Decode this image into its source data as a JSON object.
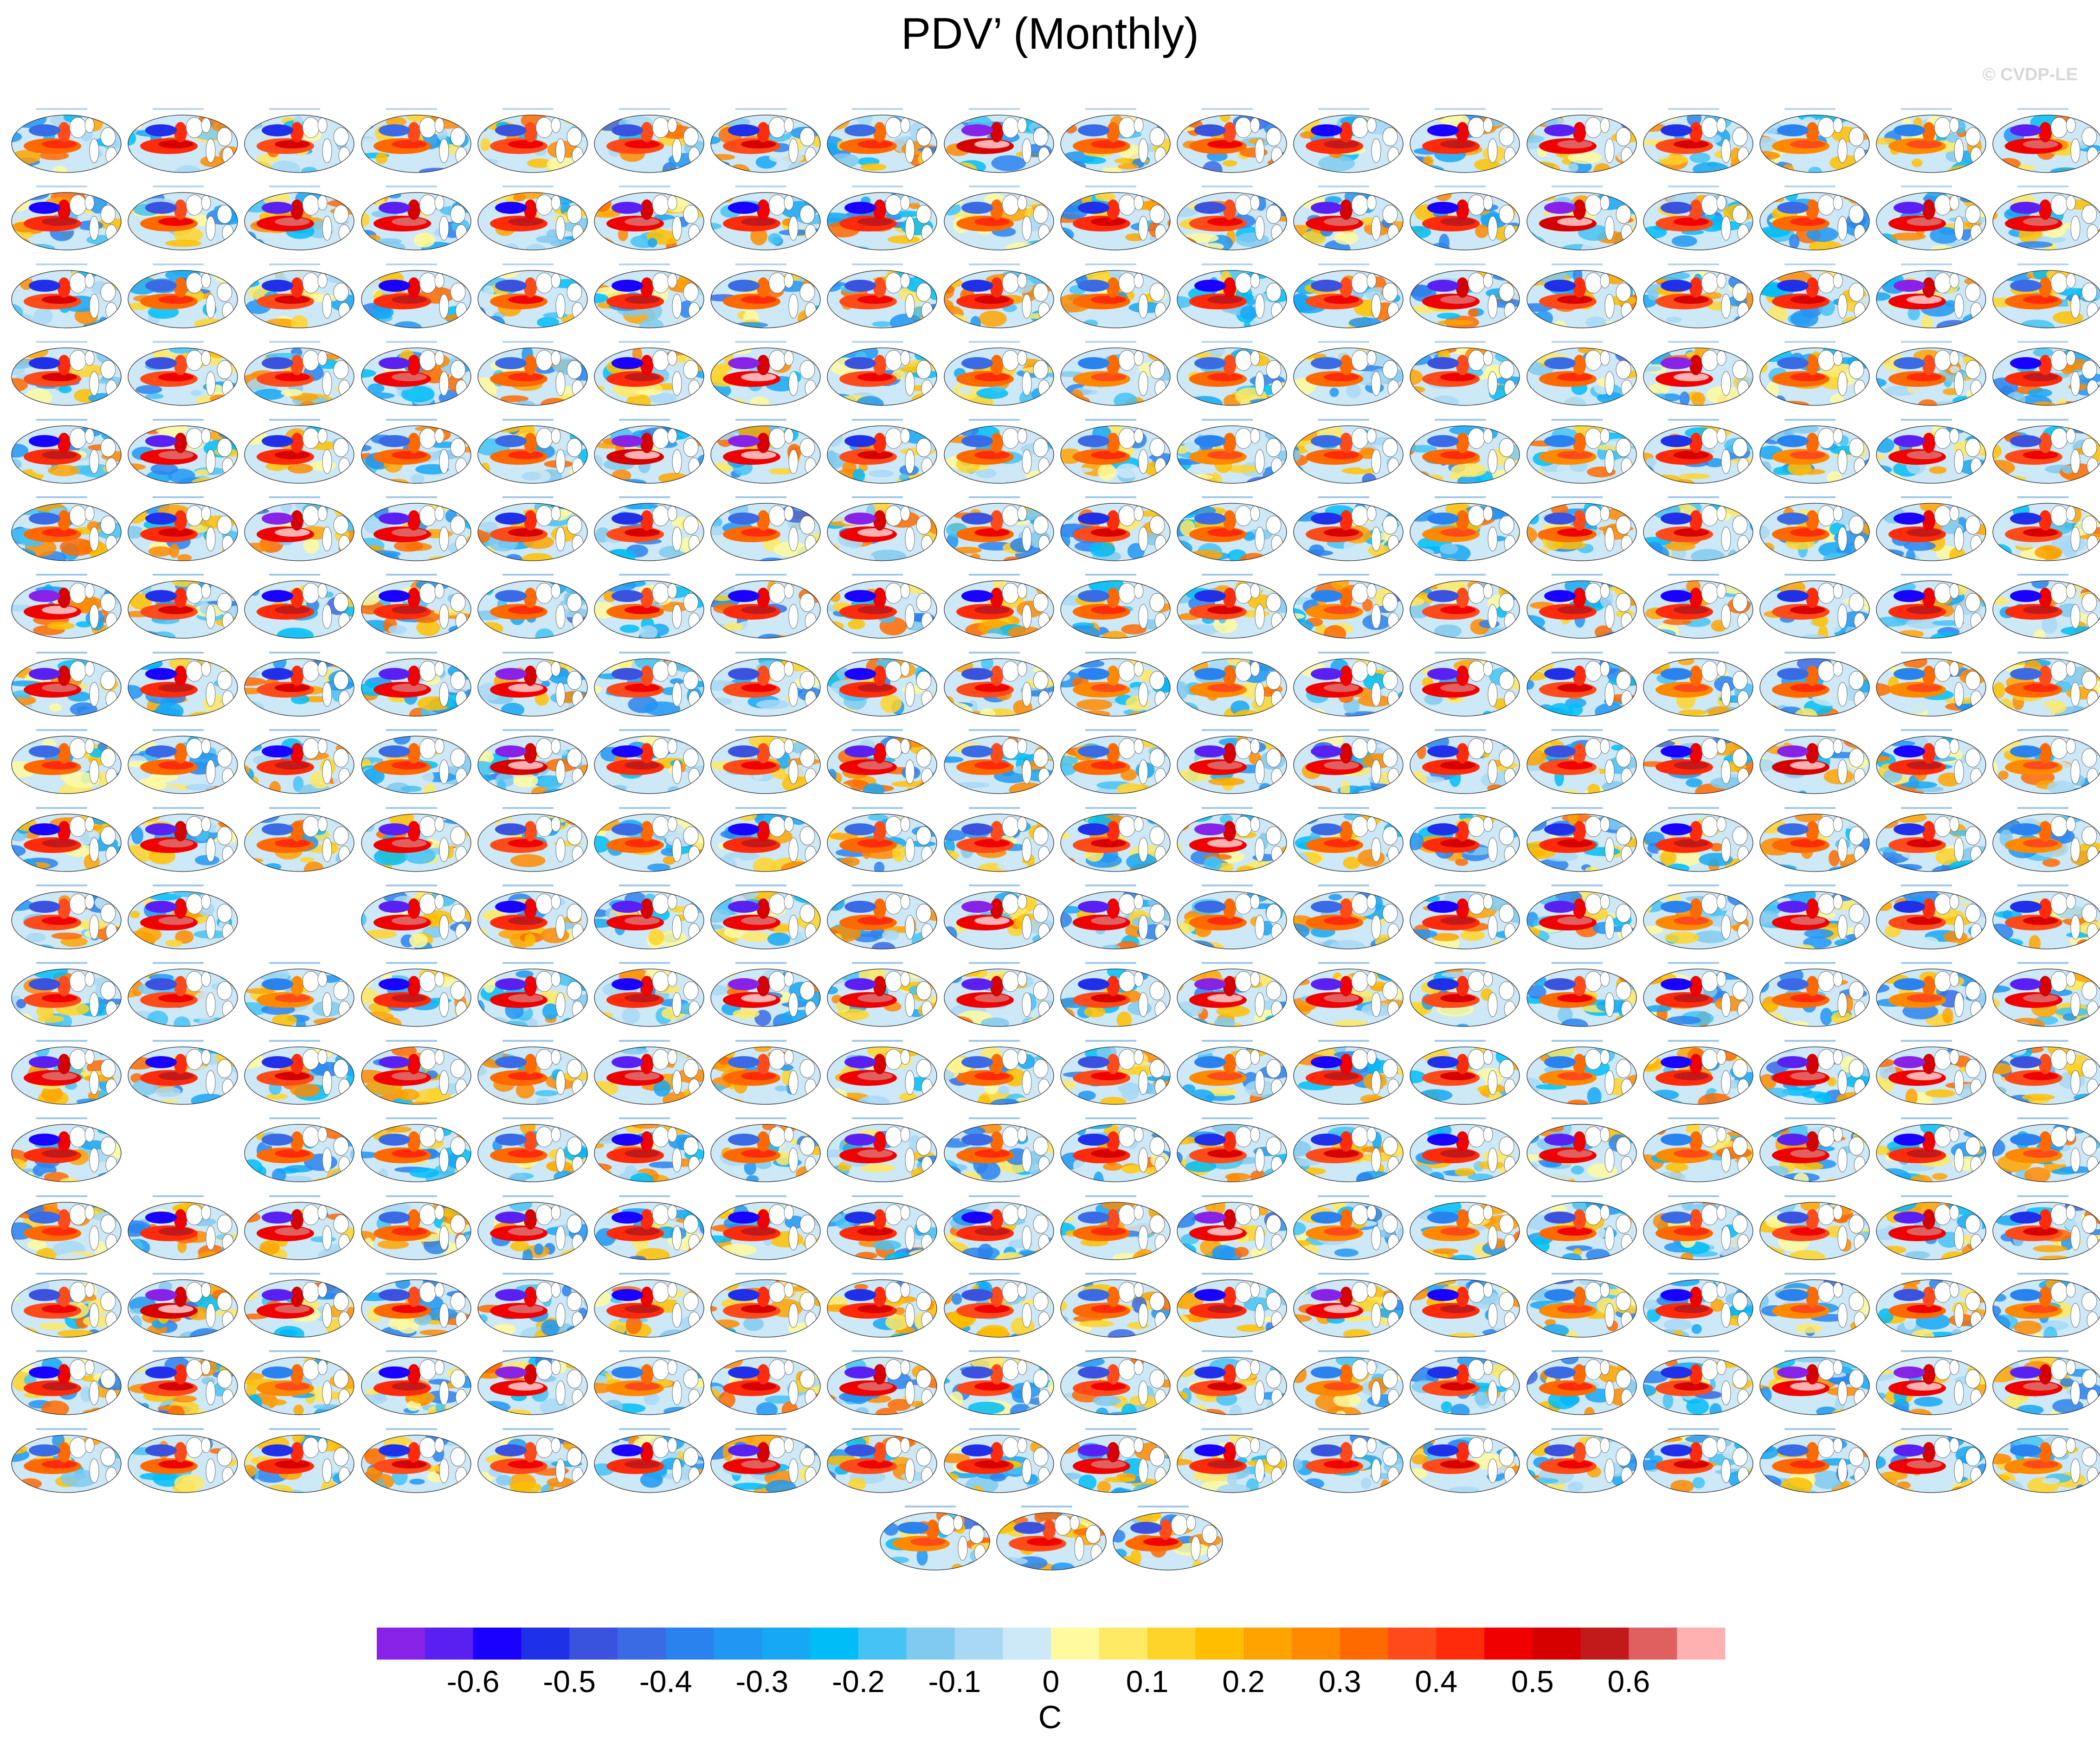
{
  "title": "PDV’ (Monthly)",
  "watermark": "© CVDP-LE",
  "chart_data": {
    "type": "heatmap",
    "title": "PDV’ (Monthly)",
    "description_of_panels": "grid of global map panels (observations followed by large-ensemble members)",
    "panel_rows": [
      {
        "row": 1,
        "count": 18
      },
      {
        "row": 2,
        "count": 18
      },
      {
        "row": 3,
        "count": 18
      },
      {
        "row": 4,
        "count": 18
      },
      {
        "row": 5,
        "count": 18
      },
      {
        "row": 6,
        "count": 18
      },
      {
        "row": 7,
        "count": 18
      },
      {
        "row": 8,
        "count": 18
      },
      {
        "row": 9,
        "count": 18
      },
      {
        "row": 10,
        "count": 18
      },
      {
        "row": 11,
        "count": 17,
        "skip_columns": [
          2
        ]
      },
      {
        "row": 12,
        "count": 18
      },
      {
        "row": 13,
        "count": 18
      },
      {
        "row": 14,
        "count": 17,
        "skip_columns": [
          1
        ]
      },
      {
        "row": 15,
        "count": 18
      },
      {
        "row": 16,
        "count": 18
      },
      {
        "row": 17,
        "count": 18
      },
      {
        "row": 18,
        "count": 18
      },
      {
        "row": 19,
        "count": 3,
        "centered": true
      }
    ],
    "colorbar": {
      "unit": "C",
      "ticks": [
        "-0.6",
        "-0.5",
        "-0.4",
        "-0.3",
        "-0.2",
        "-0.1",
        "0",
        "0.1",
        "0.2",
        "0.3",
        "0.4",
        "0.5",
        "0.6"
      ],
      "colors": [
        "#8822e6",
        "#5a20f2",
        "#1a00ff",
        "#2030e8",
        "#3a52de",
        "#3a6ae4",
        "#2a82ee",
        "#2196f3",
        "#16a8f4",
        "#00bdf8",
        "#45c3f4",
        "#80caf0",
        "#a8d8f4",
        "#cde8f6",
        "#fffaa0",
        "#ffe965",
        "#ffd42a",
        "#ffbf00",
        "#ffa300",
        "#ff8a00",
        "#ff6a00",
        "#ff4a1a",
        "#ff2b0a",
        "#f00000",
        "#d60000",
        "#c21a1a",
        "#e06060",
        "#ffb0b0"
      ]
    }
  }
}
